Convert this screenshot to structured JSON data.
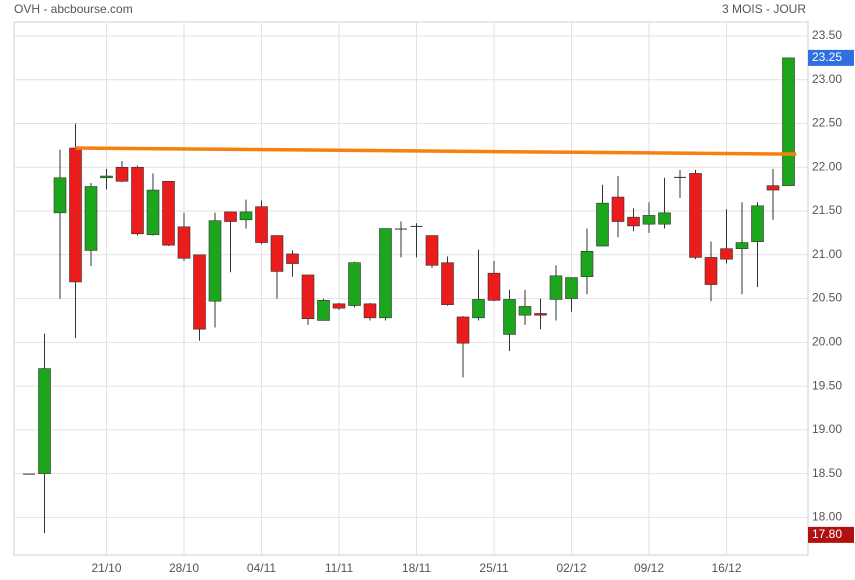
{
  "chart_data": {
    "type": "candlestick",
    "title": "OVH - abcbourse.com",
    "subtitle": "3 MOIS - JOUR",
    "categories": [
      null,
      null,
      null,
      null,
      null,
      "21/10",
      null,
      null,
      null,
      null,
      "28/10",
      null,
      null,
      null,
      null,
      "04/11",
      null,
      null,
      null,
      null,
      "11/11",
      null,
      null,
      null,
      null,
      "18/11",
      null,
      null,
      null,
      null,
      "25/11",
      null,
      null,
      null,
      null,
      "02/12",
      null,
      null,
      null,
      null,
      "09/12",
      null,
      null,
      null,
      null,
      "16/12",
      null,
      null,
      null,
      null
    ],
    "series": [
      {
        "up_color": "#1ea51e",
        "down_color": "#ea1c1c",
        "open": [
          18.5,
          18.5,
          21.48,
          22.22,
          21.05,
          21.88,
          22.0,
          22.0,
          21.23,
          21.84,
          21.32,
          21.0,
          20.47,
          21.49,
          21.4,
          21.55,
          21.22,
          21.01,
          20.77,
          20.25,
          20.44,
          20.42,
          20.44,
          20.28,
          21.3,
          21.33,
          21.22,
          20.91,
          20.29,
          20.28,
          20.79,
          20.09,
          20.31,
          20.33,
          20.49,
          20.5,
          20.75,
          21.1,
          21.66,
          21.43,
          21.35,
          21.35,
          21.89,
          21.93,
          20.97,
          21.07,
          21.07,
          21.15,
          21.79,
          21.79
        ],
        "high": [
          18.5,
          20.1,
          22.2,
          22.5,
          21.82,
          21.98,
          22.07,
          22.02,
          21.93,
          21.84,
          21.48,
          21.0,
          21.48,
          21.49,
          21.63,
          21.62,
          21.22,
          21.05,
          20.77,
          20.5,
          20.45,
          20.92,
          20.45,
          21.3,
          21.38,
          21.36,
          21.22,
          20.98,
          20.3,
          21.06,
          20.93,
          20.6,
          20.6,
          20.5,
          20.88,
          20.74,
          21.3,
          21.8,
          21.9,
          21.53,
          21.6,
          21.88,
          21.97,
          21.97,
          21.15,
          21.52,
          21.6,
          21.6,
          21.98,
          23.25
        ],
        "low": [
          18.5,
          17.82,
          20.5,
          20.05,
          20.87,
          21.75,
          21.83,
          21.22,
          21.22,
          21.1,
          20.93,
          20.02,
          20.17,
          20.8,
          21.3,
          21.12,
          20.5,
          20.75,
          20.2,
          20.25,
          20.37,
          20.4,
          20.25,
          20.25,
          20.97,
          20.97,
          20.85,
          20.42,
          19.6,
          20.25,
          20.47,
          19.9,
          20.2,
          20.15,
          20.25,
          20.35,
          20.55,
          21.1,
          21.2,
          21.27,
          21.25,
          21.3,
          21.65,
          20.95,
          20.47,
          20.9,
          20.55,
          20.63,
          21.4,
          21.79
        ],
        "close": [
          18.5,
          19.7,
          21.88,
          20.69,
          21.78,
          21.9,
          21.84,
          21.24,
          21.74,
          21.11,
          20.96,
          20.15,
          21.39,
          21.38,
          21.49,
          21.14,
          20.81,
          20.9,
          20.27,
          20.48,
          20.39,
          20.91,
          20.28,
          21.3,
          21.3,
          21.33,
          20.88,
          20.43,
          19.99,
          20.49,
          20.48,
          20.49,
          20.41,
          20.31,
          20.76,
          20.74,
          21.04,
          21.59,
          21.38,
          21.33,
          21.45,
          21.48,
          21.89,
          20.97,
          20.66,
          20.95,
          21.14,
          21.56,
          21.74,
          23.25
        ]
      }
    ],
    "trend_line": {
      "color": "#f5820f",
      "x_index": [
        3,
        49.5
      ],
      "values": [
        22.22,
        22.15
      ]
    },
    "last_price": {
      "value": 23.25,
      "color": "#2f6fe0"
    },
    "low_price": {
      "value": 17.8,
      "label": "17.80",
      "color": "#b01010"
    },
    "ylim": [
      17.57,
      23.66
    ],
    "yticks": [
      {
        "value": 18,
        "label": "18.00"
      },
      {
        "value": 18.5,
        "label": "18.50"
      },
      {
        "value": 19,
        "label": "19.00"
      },
      {
        "value": 19.5,
        "label": "19.50"
      },
      {
        "value": 20,
        "label": "20.00"
      },
      {
        "value": 20.5,
        "label": "20.50"
      },
      {
        "value": 21,
        "label": "21.00"
      },
      {
        "value": 21.5,
        "label": "21.50"
      },
      {
        "value": 22,
        "label": "22.00"
      },
      {
        "value": 22.5,
        "label": "22.50"
      },
      {
        "value": 23,
        "label": "23.00"
      },
      {
        "value": 23.5,
        "label": "23.50"
      }
    ],
    "grid": true
  }
}
